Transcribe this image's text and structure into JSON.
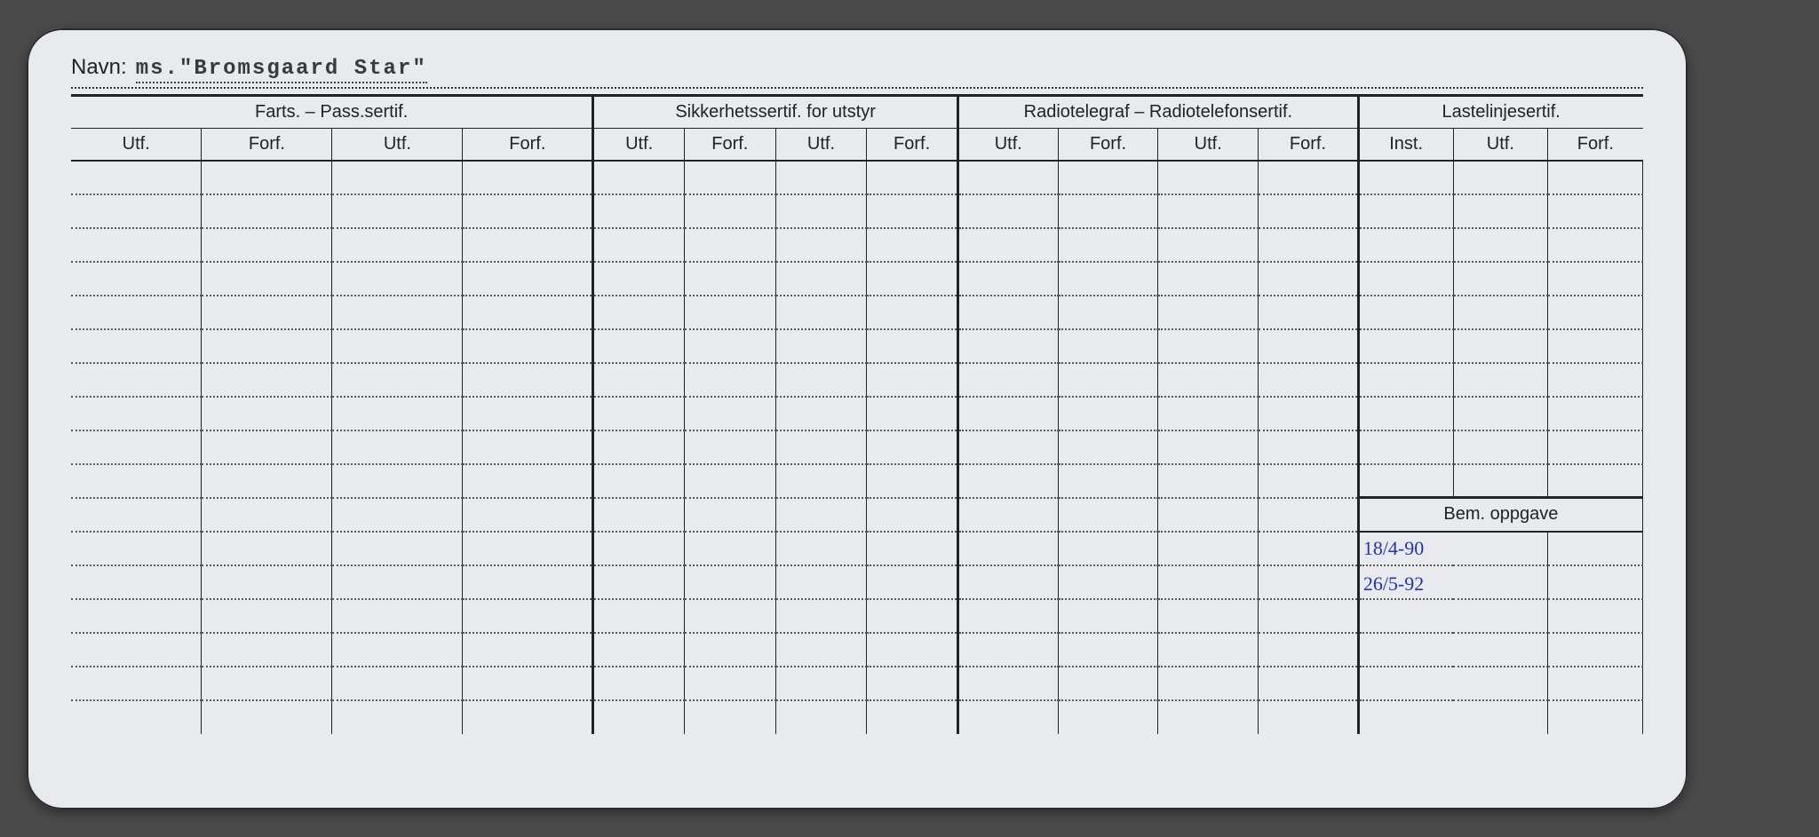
{
  "name_label": "Navn:",
  "name_value": "ms.\"Bromsgaard Star\"",
  "groups": {
    "g1": "Farts. – Pass.sertif.",
    "g2": "Sikkerhetssertif. for utstyr",
    "g3": "Radiotelegraf – Radiotelefonsertif.",
    "g4": "Lastelinjesertif."
  },
  "subheaders": {
    "utf": "Utf.",
    "forf": "Forf.",
    "inst": "Inst."
  },
  "bem_oppgave_label": "Bem. oppgave",
  "handwritten": {
    "line1": "18/4-90",
    "line2": "26/5-92"
  },
  "colors": {
    "card_bg": "#e8eaed",
    "line": "#222222",
    "ink": "#2236aa"
  },
  "row_count_upper": 11,
  "row_count_bem": 5
}
